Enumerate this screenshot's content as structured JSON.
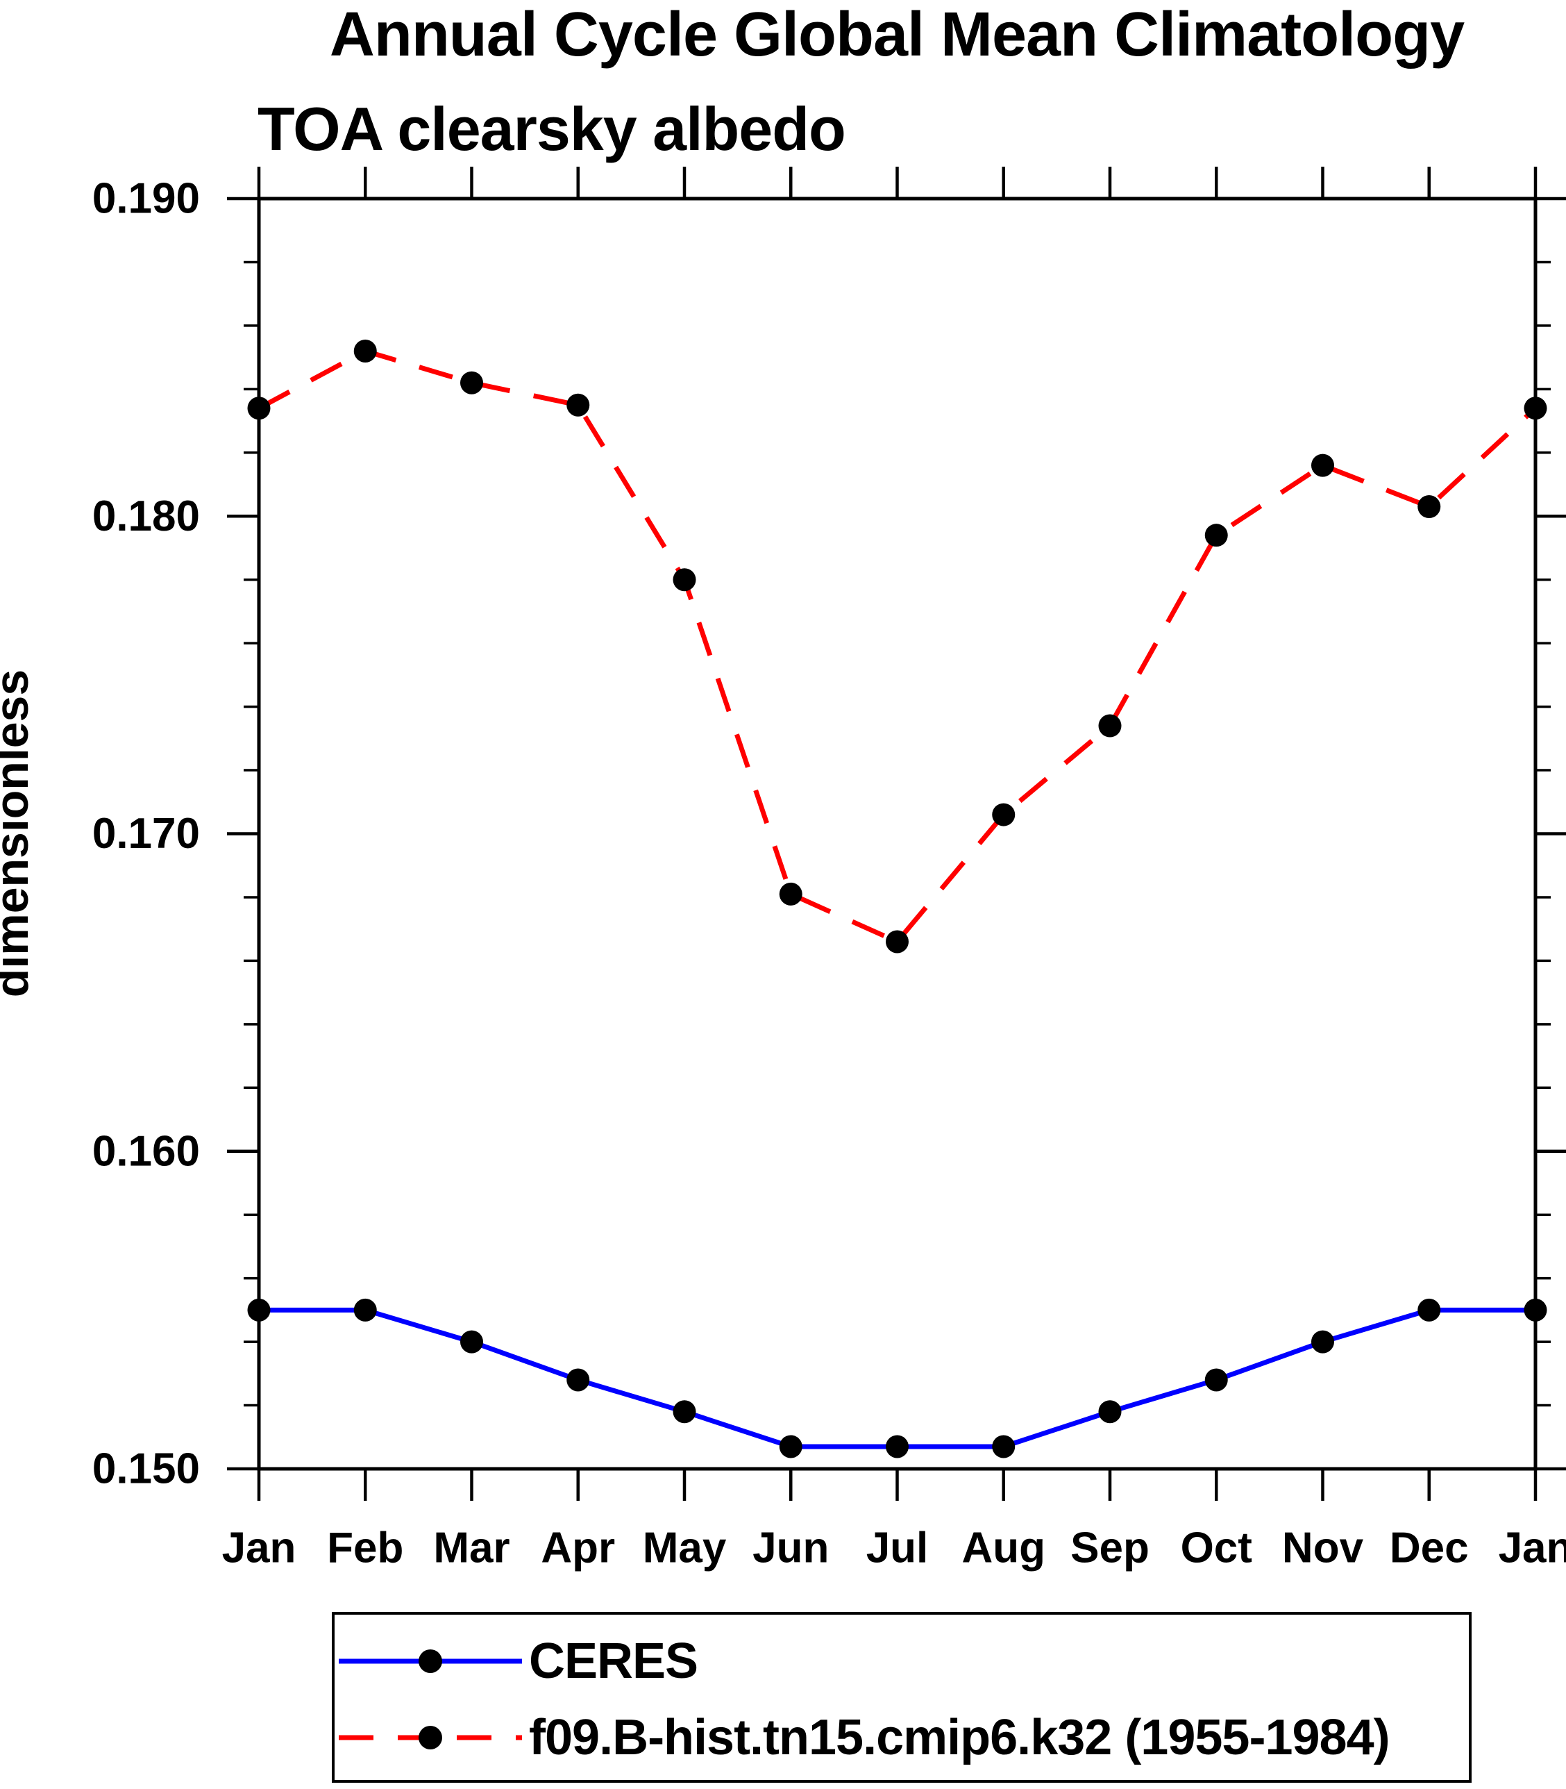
{
  "chart_data": {
    "type": "line",
    "title": "Annual Cycle Global Mean Climatology",
    "subtitle": "TOA clearsky albedo",
    "ylabel": "dimensionless",
    "xlabel": "",
    "categories": [
      "Jan",
      "Feb",
      "Mar",
      "Apr",
      "May",
      "Jun",
      "Jul",
      "Aug",
      "Sep",
      "Oct",
      "Nov",
      "Dec",
      "Jan"
    ],
    "ylim": [
      0.15,
      0.19
    ],
    "y_major_tick_step": 0.01,
    "y_minor_tick_step": 0.002,
    "y_tick_labels": [
      "0.190",
      "0.180",
      "0.170",
      "0.160",
      "0.150"
    ],
    "grid": false,
    "legend_position": "bottom-left-box",
    "series": [
      {
        "name": "CERES",
        "color": "#0000ff",
        "line_style": "solid",
        "marker": "circle",
        "marker_color": "#000000",
        "values": [
          0.155,
          0.155,
          0.154,
          0.1528,
          0.1518,
          0.1507,
          0.1507,
          0.1507,
          0.1518,
          0.1528,
          0.154,
          0.155,
          0.155
        ]
      },
      {
        "name": "f09.B-hist.tn15.cmip6.k32 (1955-1984)",
        "color": "#ff0000",
        "line_style": "dashed",
        "marker": "circle",
        "marker_color": "#000000",
        "values": [
          0.1834,
          0.1852,
          0.1842,
          0.1835,
          0.178,
          0.1681,
          0.1666,
          0.1706,
          0.1734,
          0.1794,
          0.1816,
          0.1803,
          0.1834
        ]
      }
    ]
  },
  "colors": {
    "background": "#ffffff",
    "axis": "#000000",
    "text": "#000000"
  }
}
